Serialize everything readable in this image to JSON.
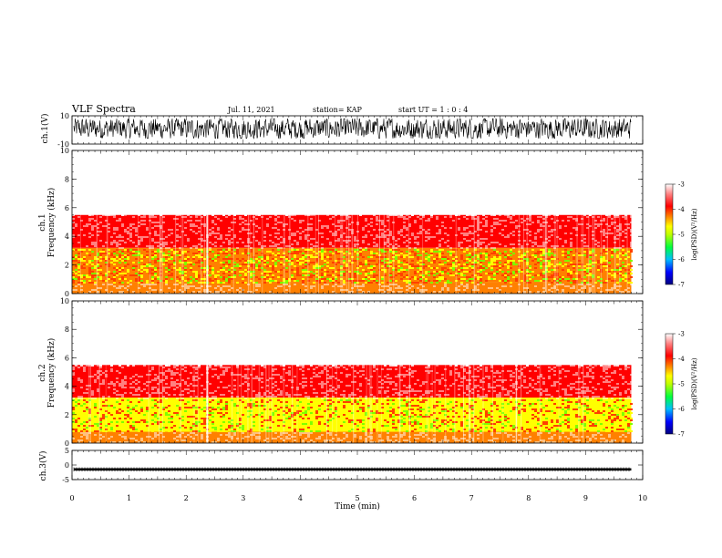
{
  "header": {
    "title": "VLF Spectra",
    "date": "Jul. 11, 2021",
    "station": "station= KAP",
    "start": "start  UT =  1 : 0 : 4"
  },
  "colors": {
    "spectrogram_base": "#ff4040",
    "spectrogram_speckle": "#ffffff",
    "colormap": [
      "#000080",
      "#0000ff",
      "#00c0ff",
      "#00ff40",
      "#c0ff00",
      "#ffff00",
      "#ff8000",
      "#ff0000",
      "#ff8080",
      "#ffffff"
    ]
  },
  "chart_data": [
    {
      "type": "line",
      "ylabel": "ch.1(V)",
      "ylim": [
        -10,
        10
      ],
      "yticks": [
        "10",
        "-10"
      ],
      "xlim": [
        0,
        10
      ],
      "grid": false,
      "description_series": "noisy waveform filling about -6 to 8 V over 0 to 9.8 min"
    },
    {
      "type": "heatmap",
      "ylabel": "ch.1\nFrequency (kHz)",
      "ylabel_line1": "ch.1",
      "ylabel_line2": "Frequency (kHz)",
      "ylim": [
        0,
        10
      ],
      "yticks": [
        "0",
        "2",
        "4",
        "6",
        "8",
        "10"
      ],
      "xlim": [
        0,
        10
      ],
      "data_end_min": 9.8,
      "colorbar": {
        "label": "log(PSD)(V²/Hz)",
        "ticks": [
          "-3",
          "-4",
          "-5",
          "-6",
          "-7"
        ],
        "range": [
          -7,
          -3
        ]
      },
      "bands": [
        {
          "from_khz": 0,
          "to_khz": 0.8,
          "level": -4.3
        },
        {
          "from_khz": 0.8,
          "to_khz": 3.2,
          "level": -4.6
        },
        {
          "from_khz": 3.2,
          "to_khz": 5.5,
          "level": -3.9
        },
        {
          "from_khz": 5.5,
          "to_khz": 10,
          "level": -3.3
        }
      ],
      "spikes_min": [
        2.37
      ]
    },
    {
      "type": "heatmap",
      "ylabel": "ch.2\nFrequency (kHz)",
      "ylabel_line1": "ch.2",
      "ylabel_line2": "Frequency (kHz)",
      "ylim": [
        0,
        10
      ],
      "yticks": [
        "0",
        "2",
        "4",
        "6",
        "8",
        "10"
      ],
      "xlim": [
        0,
        10
      ],
      "data_end_min": 9.8,
      "colorbar": {
        "label": "log(PSD)(V²/Hz)",
        "ticks": [
          "-3",
          "-4",
          "-5",
          "-6",
          "-7"
        ],
        "range": [
          -7,
          -3
        ]
      },
      "bands": [
        {
          "from_khz": 0,
          "to_khz": 0.8,
          "level": -4.3
        },
        {
          "from_khz": 0.8,
          "to_khz": 3.2,
          "level": -4.8
        },
        {
          "from_khz": 3.2,
          "to_khz": 5.5,
          "level": -3.9
        },
        {
          "from_khz": 5.5,
          "to_khz": 10,
          "level": -3.3
        }
      ],
      "spikes_min": [
        2.37
      ]
    },
    {
      "type": "line",
      "ylabel": "ch.3(V)",
      "ylim": [
        -5,
        5
      ],
      "yticks": [
        "5",
        "0",
        "-5"
      ],
      "xlim": [
        0,
        10
      ],
      "xlabel": "Time (min)",
      "xticks": [
        "0",
        "1",
        "2",
        "3",
        "4",
        "5",
        "6",
        "7",
        "8",
        "9",
        "10"
      ],
      "grid": false,
      "level_v": -1.5,
      "band_halfwidth_v": 0.4
    }
  ]
}
